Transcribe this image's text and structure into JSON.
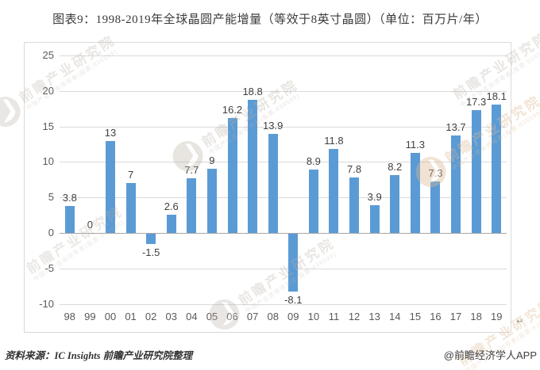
{
  "title": "图表9：1998-2019年全球晶圆产能增量（等效于8英寸晶圆）（单位：百万片/年）",
  "footer": {
    "source": "资料来源：IC Insights 前瞻产业研究院整理",
    "credit": "@前瞻经济学人APP"
  },
  "watermark": {
    "brand": "前瞻产业研究院",
    "tagline": "中国产业咨询领导者(股票:839599)"
  },
  "misc": {
    "paragraph_mark": "↵"
  },
  "colors": {
    "bar": "#5B9BD5",
    "gridline": "#D9D9D9",
    "axis_line": "#A6A6A6",
    "tick_label": "#595959",
    "data_label": "#404040",
    "border": "#D9D9D9",
    "watermark_gray": "#b9b0a5",
    "watermark_tan": "#ddb88f"
  },
  "chart_data": {
    "type": "bar",
    "title": "图表9：1998-2019年全球晶圆产能增量（等效于8英寸晶圆）（单位：百万片/年）",
    "unit": "百万片/年",
    "categories": [
      "98",
      "99",
      "00",
      "01",
      "02",
      "03",
      "04",
      "05",
      "06",
      "07",
      "08",
      "09",
      "10",
      "11",
      "12",
      "13",
      "14",
      "15",
      "16",
      "17",
      "18",
      "19"
    ],
    "values": [
      3.8,
      0,
      13,
      7,
      -1.5,
      2.6,
      7.7,
      9,
      16.2,
      18.8,
      13.9,
      -8.1,
      8.9,
      11.8,
      7.8,
      3.9,
      8.2,
      11.3,
      7.3,
      13.7,
      17.3,
      18.1
    ],
    "labels": [
      "3.8",
      "0",
      "13",
      "7",
      "-1.5",
      "2.6",
      "7.7",
      "9",
      "16.2",
      "18.8",
      "13.9",
      "-8.1",
      "8.9",
      "11.8",
      "7.8",
      "3.9",
      "8.2",
      "11.3",
      "7.3",
      "13.7",
      "17.3",
      "18.1"
    ],
    "xlabel": "",
    "ylabel": "",
    "ylim": [
      -10,
      25
    ],
    "yticks": [
      25,
      20,
      15,
      10,
      5,
      0,
      -5,
      -10
    ],
    "grid": true,
    "legend": "none",
    "bar_color": "#5B9BD5"
  }
}
